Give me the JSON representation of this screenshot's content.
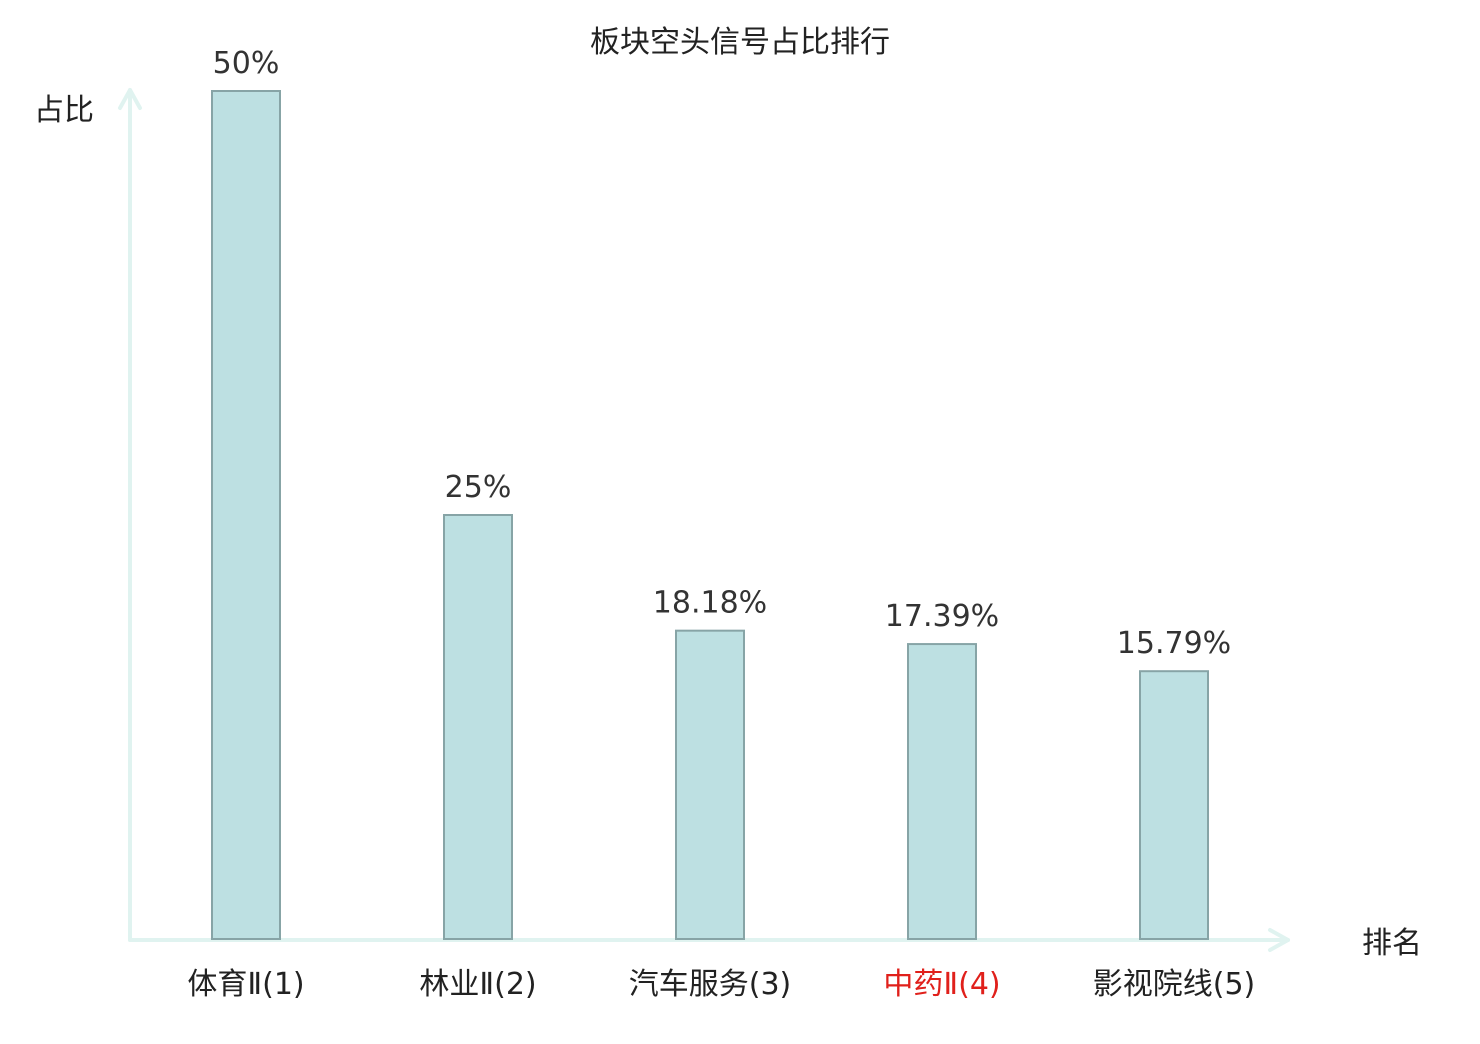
{
  "chart_data": {
    "type": "bar",
    "title": "板块空头信号占比排行",
    "xlabel": "排名",
    "ylabel": "占比",
    "categories": [
      "体育Ⅱ(1)",
      "林业Ⅱ(2)",
      "汽车服务(3)",
      "中药Ⅱ(4)",
      "影视院线(5)"
    ],
    "values": [
      50,
      25,
      18.18,
      17.39,
      15.79
    ],
    "value_labels": [
      "50%",
      "25%",
      "18.18%",
      "17.39%",
      "15.79%"
    ],
    "highlight_category_index": 3,
    "ylim": [
      0,
      50
    ],
    "grid": false,
    "legend": "none"
  },
  "colors": {
    "bar_fill": "#bde0e2",
    "bar_stroke": "#87a4a6",
    "axis": "#e0f3f0",
    "text": "#222222",
    "value_label": "#333333",
    "highlight": "#e0201b"
  }
}
